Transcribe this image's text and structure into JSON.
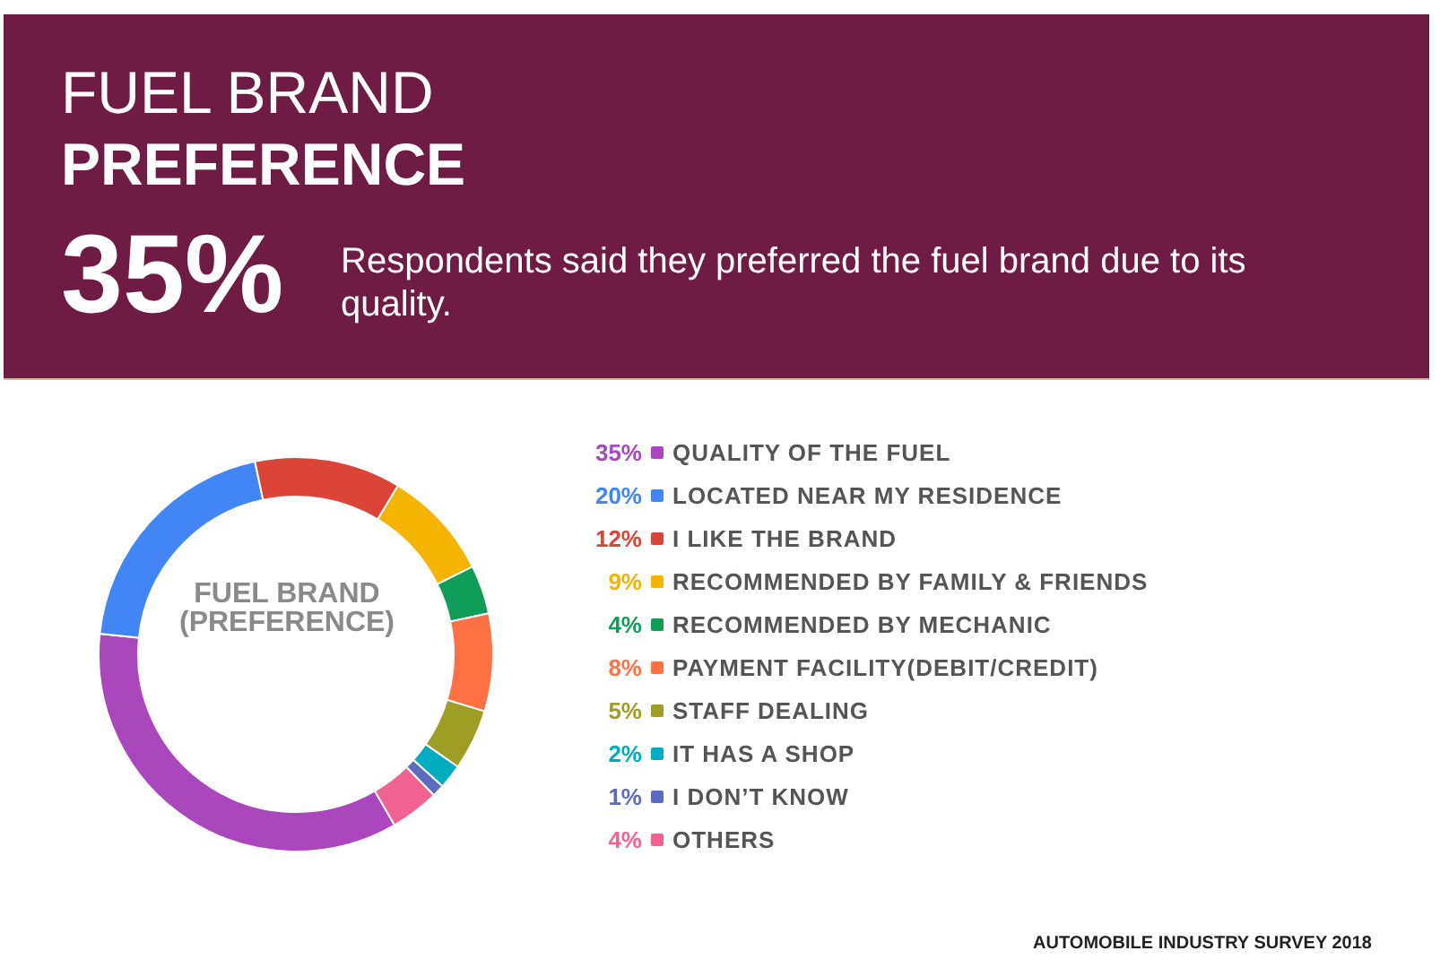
{
  "chart_data": {
    "type": "donut",
    "title": "FUEL BRAND PREFERENCE",
    "categories": [
      "QUALITY OF THE FUEL",
      "LOCATED NEAR MY RESIDENCE",
      "I LIKE THE BRAND",
      "RECOMMENDED BY FAMILY & FRIENDS",
      "RECOMMENDED BY MECHANIC",
      "PAYMENT FACILITY(DEBIT/CREDIT)",
      "STAFF DEALING",
      "IT HAS A SHOP",
      "I DON’T KNOW",
      "OTHERS"
    ],
    "values": [
      35,
      20,
      12,
      9,
      4,
      8,
      5,
      2,
      1,
      4
    ],
    "value_labels": [
      "35%",
      "20%",
      "12%",
      "9%",
      "4%",
      "8%",
      "5%",
      "2%",
      "1%",
      "4%"
    ],
    "colors": [
      "#ab47bc",
      "#4285f4",
      "#db4437",
      "#f4b400",
      "#0f9d58",
      "#ff7043",
      "#9e9d24",
      "#00acc1",
      "#5c6bc0",
      "#f06292"
    ],
    "legend": "right",
    "annotations": [
      "35%",
      "Respondents said they preferred the fuel brand due to its  quality.",
      "FUEL BRAND\n(PREFERENCE)",
      "AUTOMOBILE INDUSTRY SURVEY 2018"
    ]
  }
}
